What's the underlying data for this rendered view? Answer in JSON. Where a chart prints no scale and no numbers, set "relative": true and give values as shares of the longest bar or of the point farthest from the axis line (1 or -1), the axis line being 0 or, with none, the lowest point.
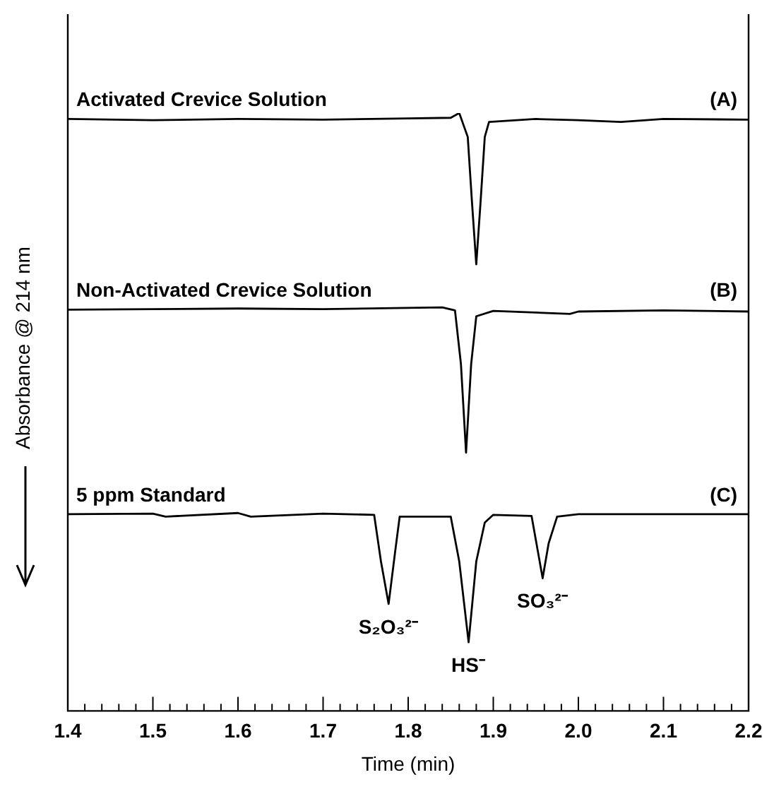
{
  "chart_data": {
    "type": "line",
    "relative": true,
    "xlabel": "Time (min)",
    "ylabel": "Absorbance @ 214 nm",
    "xlim": [
      1.4,
      2.2
    ],
    "xticks": [
      1.4,
      {
        "value": 1.42,
        "label": null
      },
      {
        "value": 1.44,
        "label": null
      },
      {
        "value": 1.46,
        "label": null
      },
      {
        "value": 1.48,
        "label": null
      },
      1.5,
      {
        "value": 1.52,
        "label": null
      },
      {
        "value": 1.54,
        "label": null
      },
      {
        "value": 1.56,
        "label": null
      },
      {
        "value": 1.58,
        "label": null
      },
      1.6,
      {
        "value": 1.62,
        "label": null
      },
      {
        "value": 1.64,
        "label": null
      },
      {
        "value": 1.66,
        "label": null
      },
      {
        "value": 1.68,
        "label": null
      },
      1.7,
      {
        "value": 1.72,
        "label": null
      },
      {
        "value": 1.74,
        "label": null
      },
      {
        "value": 1.76,
        "label": null
      },
      {
        "value": 1.78,
        "label": null
      },
      1.8,
      {
        "value": 1.82,
        "label": null
      },
      {
        "value": 1.84,
        "label": null
      },
      {
        "value": 1.86,
        "label": null
      },
      {
        "value": 1.88,
        "label": null
      },
      1.9,
      {
        "value": 1.92,
        "label": null
      },
      {
        "value": 1.94,
        "label": null
      },
      {
        "value": 1.96,
        "label": null
      },
      {
        "value": 1.98,
        "label": null
      },
      {
        "value": 2.0,
        "label": "2.0"
      },
      {
        "value": 2.02,
        "label": null
      },
      {
        "value": 2.04,
        "label": null
      },
      {
        "value": 2.06,
        "label": null
      },
      {
        "value": 2.08,
        "label": null
      },
      2.1,
      {
        "value": 2.12,
        "label": null
      },
      {
        "value": 2.14,
        "label": null
      },
      {
        "value": 2.16,
        "label": null
      },
      {
        "value": 2.18,
        "label": null
      },
      2.2
    ],
    "grid": false,
    "legend": false,
    "marker": "none",
    "line_style": "solid",
    "series": [
      {
        "name": "Activated Crevice Solution",
        "color": "#000000",
        "x": [
          1.4,
          1.5,
          1.6,
          1.7,
          1.8,
          1.85,
          1.86,
          1.87,
          1.875,
          1.88,
          1.885,
          1.89,
          1.895,
          1.95,
          2.0,
          2.05,
          2.1,
          2.2
        ],
        "values": [
          0.99,
          0.988,
          0.99,
          0.989,
          0.991,
          0.992,
          1.0,
          0.96,
          0.85,
          0.747,
          0.85,
          0.96,
          0.985,
          0.99,
          0.988,
          0.985,
          0.99,
          0.989
        ]
      },
      {
        "name": "Non-Activated Crevice Solution",
        "color": "#000000",
        "x": [
          1.4,
          1.6,
          1.7,
          1.84,
          1.855,
          1.862,
          1.868,
          1.874,
          1.88,
          1.9,
          1.99,
          2.0,
          2.1,
          2.2
        ],
        "values": [
          0.671,
          0.673,
          0.672,
          0.675,
          0.67,
          0.58,
          0.432,
          0.58,
          0.66,
          0.669,
          0.664,
          0.668,
          0.67,
          0.668
        ]
      },
      {
        "name": "5 ppm Standard",
        "color": "#000000",
        "x": [
          1.4,
          1.5,
          1.515,
          1.6,
          1.615,
          1.7,
          1.76,
          1.768,
          1.777,
          1.785,
          1.79,
          1.85,
          1.86,
          1.871,
          1.88,
          1.89,
          1.9,
          1.945,
          1.952,
          1.958,
          1.965,
          1.975,
          2.0,
          2.2
        ],
        "values": [
          0.329,
          0.33,
          0.325,
          0.331,
          0.325,
          0.33,
          0.328,
          0.25,
          0.179,
          0.27,
          0.325,
          0.325,
          0.25,
          0.115,
          0.25,
          0.315,
          0.328,
          0.326,
          0.27,
          0.222,
          0.28,
          0.325,
          0.329,
          0.329
        ]
      }
    ],
    "annotations": [
      "(A)",
      "(B)",
      "(C)",
      {
        "text": "S₂O₃²⁻",
        "x": 1.777,
        "y": 0.179
      },
      {
        "text": "HS⁻",
        "x": 1.871,
        "y": 0.115
      },
      {
        "text": "SO₃²⁻",
        "x": 1.958,
        "y": 0.222
      }
    ]
  }
}
